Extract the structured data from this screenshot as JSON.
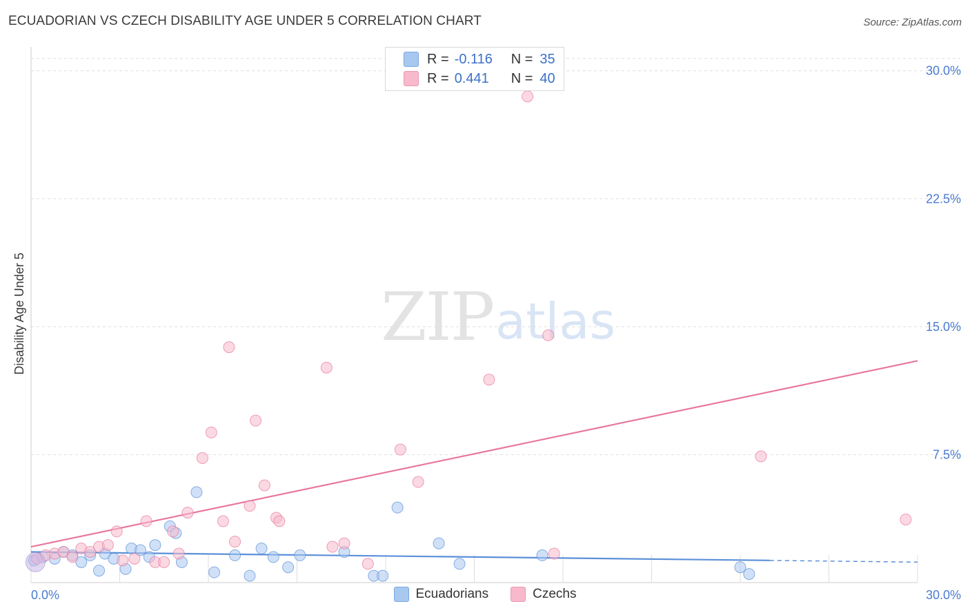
{
  "header": {
    "title": "ECUADORIAN VS CZECH DISABILITY AGE UNDER 5 CORRELATION CHART",
    "source": "Source: ZipAtlas.com"
  },
  "watermark": {
    "zip": "ZIP",
    "atlas": "atlas"
  },
  "legend": {
    "rows": [
      {
        "r_label": "R =",
        "r_value": "-0.116",
        "n_label": "N =",
        "n_value": "35",
        "color": "#a9c8f0"
      },
      {
        "r_label": "R =",
        "r_value": "0.441",
        "n_label": "N =",
        "n_value": "40",
        "color": "#f7b9cb"
      }
    ]
  },
  "bottom_legend": {
    "items": [
      {
        "label": "Ecuadorians",
        "color": "#a9c8f0"
      },
      {
        "label": "Czechs",
        "color": "#f7b9cb"
      }
    ]
  },
  "chart_data": {
    "type": "scatter",
    "title": "ECUADORIAN VS CZECH DISABILITY AGE UNDER 5 CORRELATION CHART",
    "xlabel": "",
    "ylabel": "Disability Age Under 5",
    "xlim": [
      0,
      30
    ],
    "ylim": [
      0,
      31
    ],
    "x_tick_labels": [
      "0.0%",
      "30.0%"
    ],
    "y_ticks": [
      7.5,
      15.0,
      22.5,
      30.0
    ],
    "y_tick_labels": [
      "7.5%",
      "15.0%",
      "22.5%",
      "30.0%"
    ],
    "series": [
      {
        "name": "Ecuadorians",
        "color": "#5b8fd8",
        "fill": "#a9c8f0",
        "points": [
          [
            0.1,
            1.3
          ],
          [
            0.4,
            1.5
          ],
          [
            0.8,
            1.4
          ],
          [
            1.1,
            1.8
          ],
          [
            1.4,
            1.6
          ],
          [
            1.7,
            1.2
          ],
          [
            2.0,
            1.6
          ],
          [
            2.3,
            0.7
          ],
          [
            2.5,
            1.7
          ],
          [
            2.8,
            1.4
          ],
          [
            3.2,
            0.8
          ],
          [
            3.4,
            2.0
          ],
          [
            3.7,
            1.9
          ],
          [
            4.0,
            1.5
          ],
          [
            4.2,
            2.2
          ],
          [
            4.7,
            3.3
          ],
          [
            4.9,
            2.9
          ],
          [
            5.1,
            1.2
          ],
          [
            5.6,
            5.3
          ],
          [
            6.2,
            0.6
          ],
          [
            6.9,
            1.6
          ],
          [
            7.4,
            0.4
          ],
          [
            7.8,
            2.0
          ],
          [
            8.2,
            1.5
          ],
          [
            8.7,
            0.9
          ],
          [
            9.1,
            1.6
          ],
          [
            10.6,
            1.8
          ],
          [
            11.6,
            0.4
          ],
          [
            11.9,
            0.4
          ],
          [
            12.4,
            4.4
          ],
          [
            13.8,
            2.3
          ],
          [
            14.5,
            1.1
          ],
          [
            17.3,
            1.6
          ],
          [
            24.0,
            0.9
          ],
          [
            24.3,
            0.5
          ]
        ],
        "trend": {
          "x": [
            0,
            25.0
          ],
          "y": [
            1.8,
            1.3
          ],
          "dashed_to": [
            30,
            1.2
          ]
        }
      },
      {
        "name": "Czechs",
        "color": "#e8779f",
        "fill": "#f7b9cb",
        "points": [
          [
            0.2,
            1.4
          ],
          [
            0.5,
            1.6
          ],
          [
            0.8,
            1.7
          ],
          [
            1.1,
            1.8
          ],
          [
            1.4,
            1.5
          ],
          [
            1.7,
            2.0
          ],
          [
            2.0,
            1.8
          ],
          [
            2.3,
            2.1
          ],
          [
            2.6,
            2.2
          ],
          [
            2.9,
            3.0
          ],
          [
            3.1,
            1.3
          ],
          [
            3.5,
            1.4
          ],
          [
            3.9,
            3.6
          ],
          [
            4.2,
            1.2
          ],
          [
            4.5,
            1.2
          ],
          [
            4.8,
            3.0
          ],
          [
            5.0,
            1.7
          ],
          [
            5.3,
            4.1
          ],
          [
            5.8,
            7.3
          ],
          [
            6.1,
            8.8
          ],
          [
            6.5,
            3.6
          ],
          [
            6.7,
            13.8
          ],
          [
            6.9,
            2.4
          ],
          [
            7.4,
            4.5
          ],
          [
            7.6,
            9.5
          ],
          [
            7.9,
            5.7
          ],
          [
            8.3,
            3.8
          ],
          [
            8.4,
            3.6
          ],
          [
            10.0,
            12.6
          ],
          [
            10.2,
            2.1
          ],
          [
            10.6,
            2.3
          ],
          [
            11.4,
            1.1
          ],
          [
            12.5,
            7.8
          ],
          [
            13.1,
            5.9
          ],
          [
            15.5,
            11.9
          ],
          [
            17.5,
            14.5
          ],
          [
            17.7,
            1.7
          ],
          [
            24.7,
            7.4
          ],
          [
            29.6,
            3.7
          ],
          [
            16.8,
            28.5
          ]
        ],
        "trend": {
          "x": [
            0,
            30
          ],
          "y": [
            2.1,
            13.0
          ]
        }
      }
    ]
  }
}
